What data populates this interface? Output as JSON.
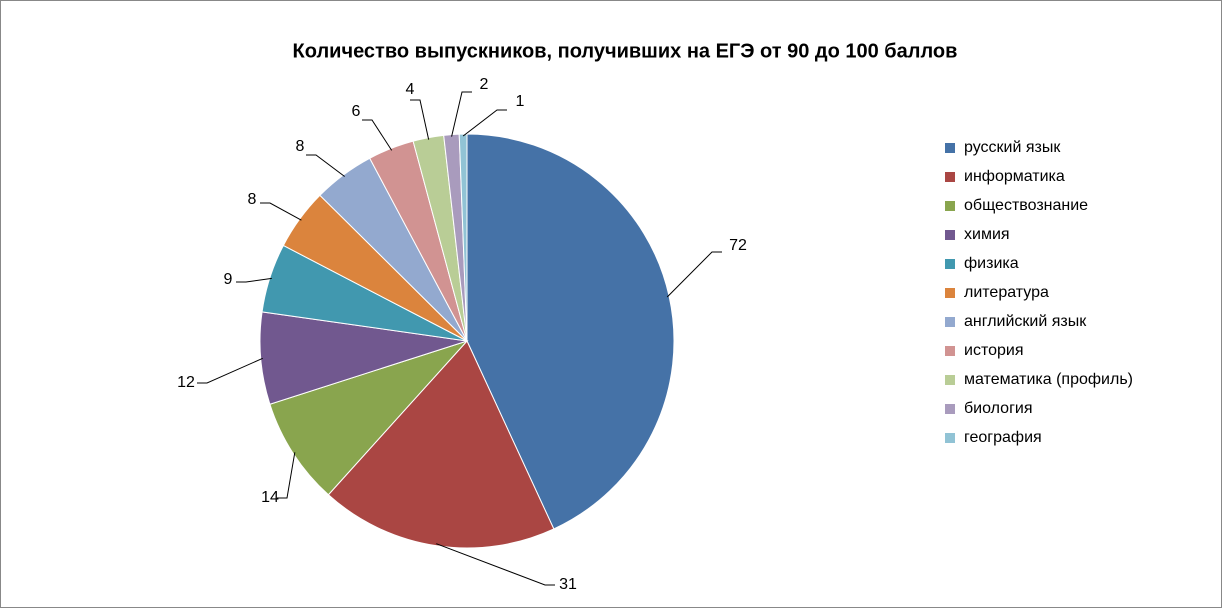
{
  "chart_data": {
    "type": "pie",
    "title": "Количество выпускников, получивших на ЕГЭ от 90 до 100 баллов",
    "categories": [
      "русский язык",
      "информатика",
      "обществознание",
      "химия",
      "физика",
      "литература",
      "английский язык",
      "история",
      "математика (профиль)",
      "биология",
      "география"
    ],
    "values": [
      72,
      31,
      14,
      12,
      9,
      8,
      8,
      6,
      4,
      2,
      1
    ],
    "colors": [
      "#4572A7",
      "#AA4643",
      "#89A54E",
      "#71588F",
      "#4198AF",
      "#DB843D",
      "#93A9CF",
      "#D19392",
      "#B9CD96",
      "#A99BBD",
      "#91C3D5"
    ],
    "legend": "right"
  }
}
